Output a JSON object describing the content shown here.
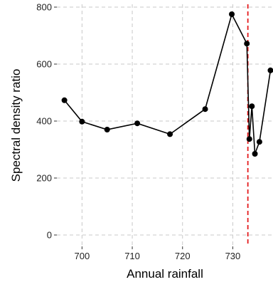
{
  "chart_data": {
    "type": "line",
    "title": "",
    "xlabel": "Annual rainfall",
    "ylabel": "Spectral density ratio",
    "xlim": [
      695,
      738
    ],
    "ylim": [
      -40,
      810
    ],
    "x_ticks": [
      700,
      710,
      720,
      730
    ],
    "y_ticks": [
      0,
      200,
      400,
      600,
      800
    ],
    "x_tick_labels": [
      "700",
      "710",
      "720",
      "730"
    ],
    "y_tick_labels": [
      "0",
      "200",
      "400",
      "600",
      "800"
    ],
    "grid": true,
    "series": [
      {
        "color": "#000000",
        "points": [
          {
            "x": 696.5,
            "y": 473
          },
          {
            "x": 700.0,
            "y": 398
          },
          {
            "x": 705.0,
            "y": 370
          },
          {
            "x": 711.0,
            "y": 392
          },
          {
            "x": 717.5,
            "y": 354
          },
          {
            "x": 724.5,
            "y": 442
          },
          {
            "x": 729.8,
            "y": 775
          },
          {
            "x": 732.8,
            "y": 672
          },
          {
            "x": 733.3,
            "y": 337
          },
          {
            "x": 733.8,
            "y": 452
          },
          {
            "x": 734.4,
            "y": 285
          },
          {
            "x": 735.3,
            "y": 327
          },
          {
            "x": 737.5,
            "y": 578
          }
        ]
      }
    ],
    "reference_line": {
      "orientation": "vertical",
      "x": 733.0,
      "color": "#e41a1c",
      "style": "dashed"
    }
  }
}
